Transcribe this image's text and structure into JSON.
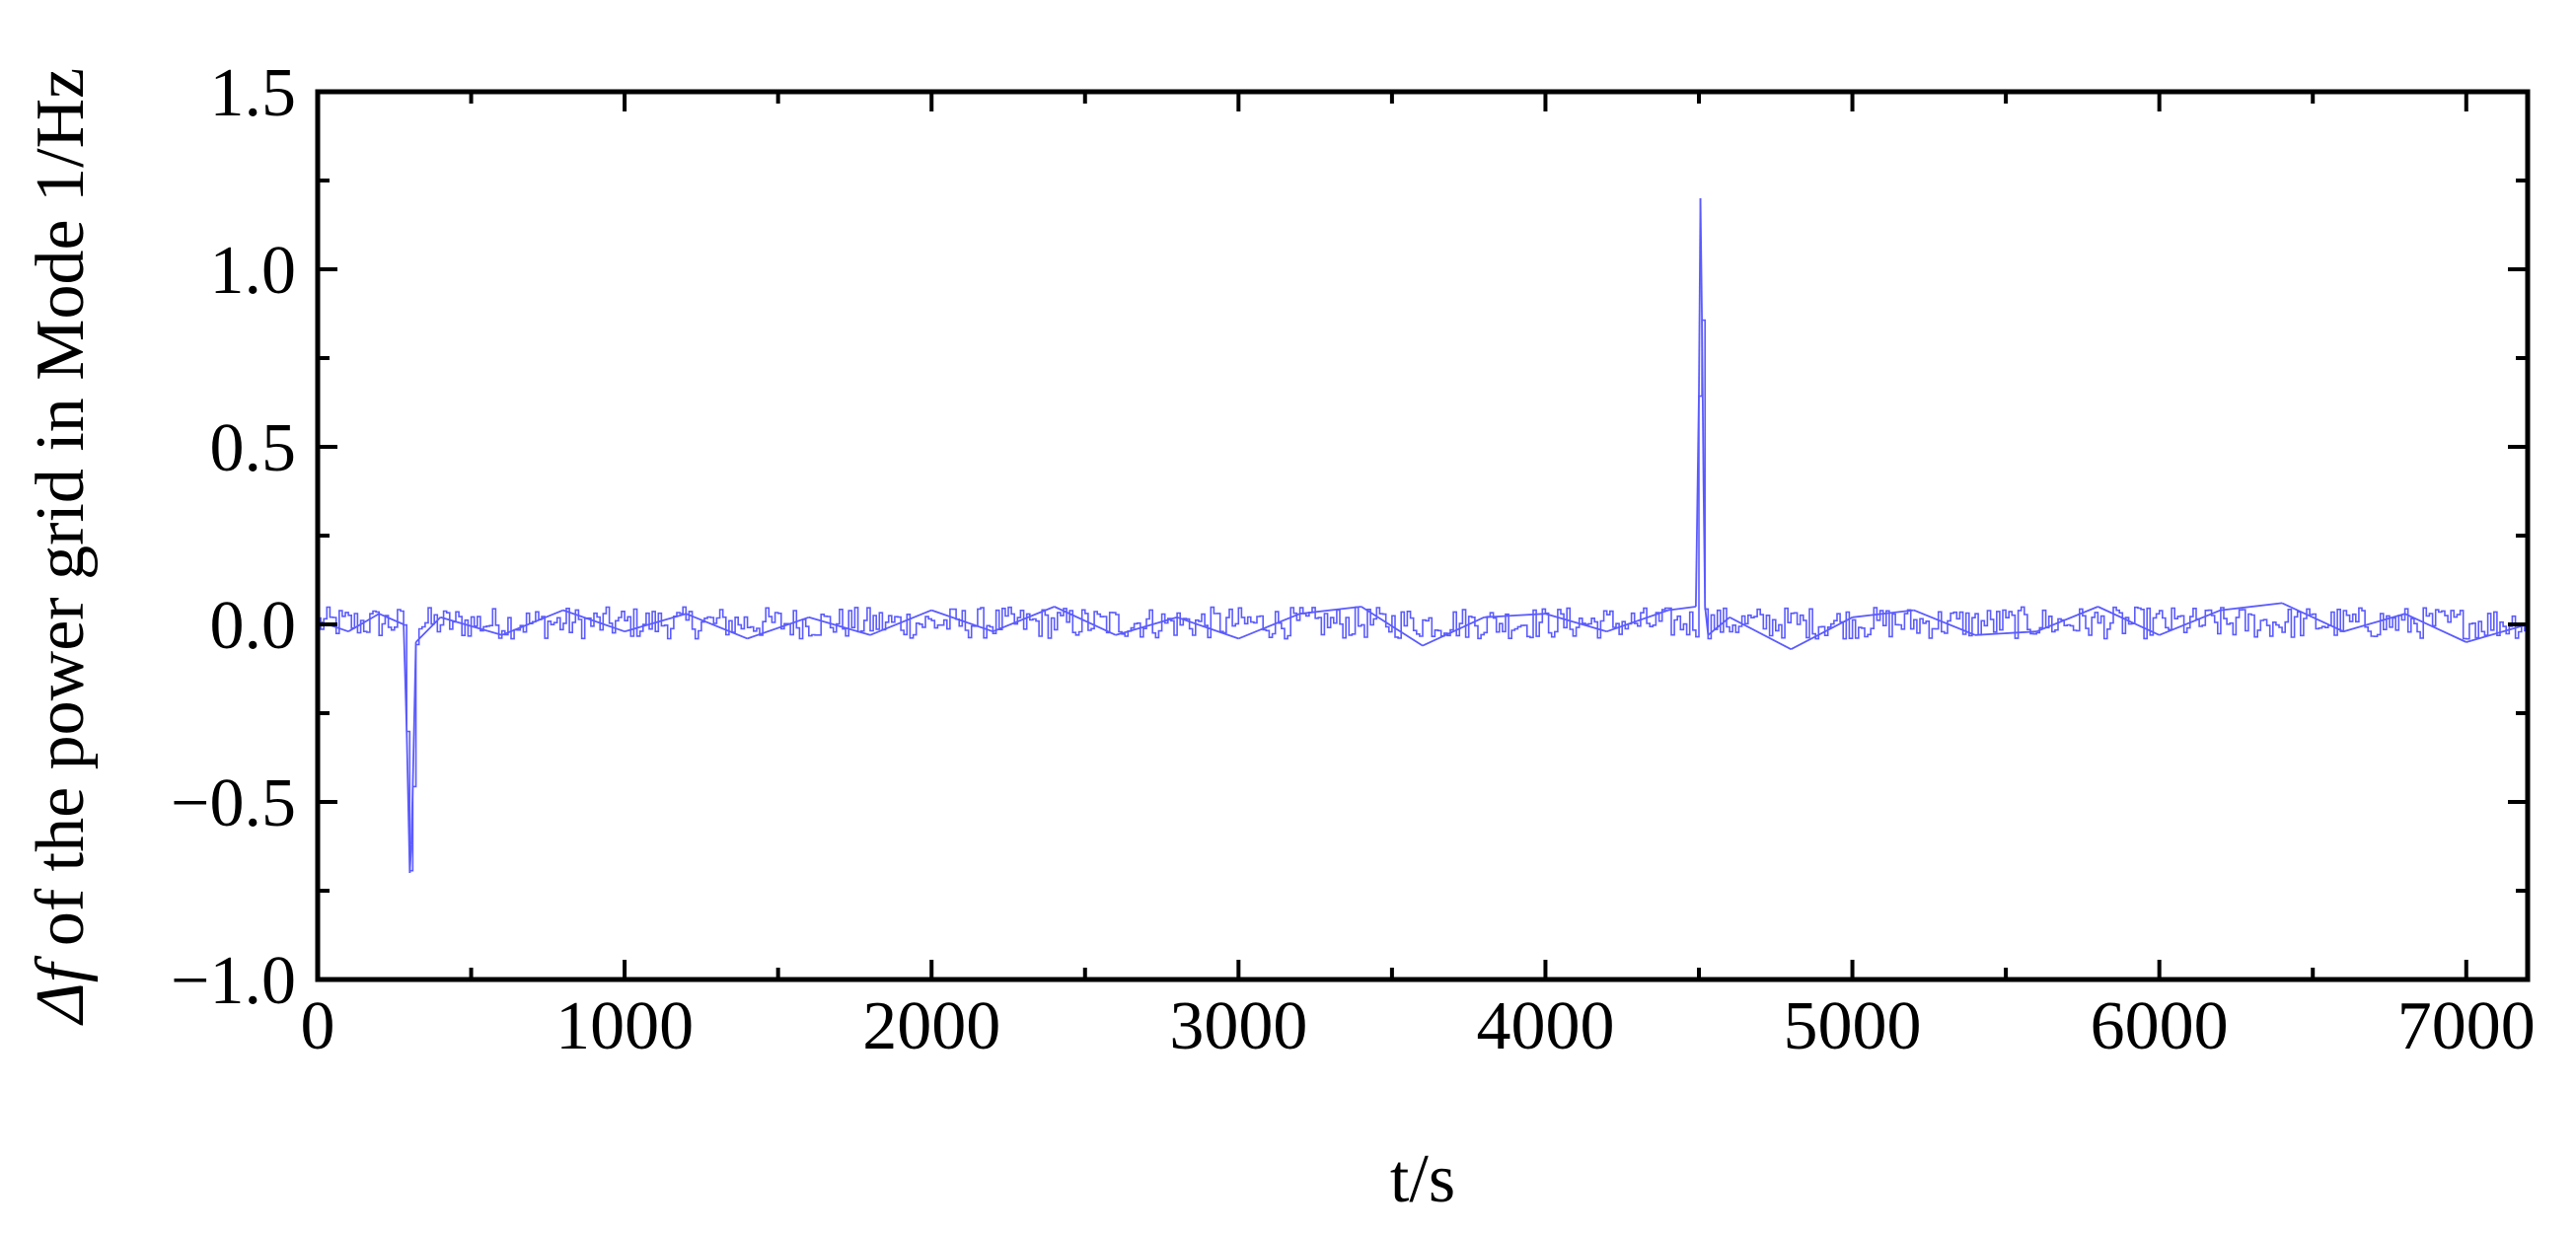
{
  "chart_data": {
    "type": "line",
    "title": "",
    "xlabel": "t/s",
    "ylabel": {
      "symbol": "Δf",
      "rest": " of the power grid in Mode 1/Hz"
    },
    "xlim": [
      0,
      7200
    ],
    "ylim": [
      -1.0,
      1.5
    ],
    "xticks": [
      0,
      1000,
      2000,
      3000,
      4000,
      5000,
      6000,
      7000
    ],
    "xtick_labels": [
      "0",
      "1000",
      "2000",
      "3000",
      "4000",
      "5000",
      "6000",
      "7000"
    ],
    "yticks": [
      -1.0,
      -0.5,
      0.0,
      0.5,
      1.0,
      1.5
    ],
    "ytick_labels": [
      "−1.0",
      "−0.5",
      "0.0",
      "0.5",
      "1.0",
      "1.5"
    ],
    "grid": false,
    "series": [
      {
        "color": "#5b5bff",
        "x": [
          0,
          100,
          200,
          280,
          290,
          300,
          305,
          310,
          320,
          400,
          600,
          800,
          1000,
          1200,
          1400,
          1600,
          1800,
          2000,
          2200,
          2400,
          2600,
          2800,
          3000,
          3200,
          3400,
          3600,
          3800,
          4000,
          4200,
          4400,
          4490,
          4500,
          4505,
          4510,
          4515,
          4520,
          4530,
          4600,
          4800,
          5000,
          5200,
          5400,
          5600,
          5800,
          6000,
          6200,
          6400,
          6600,
          6800,
          7000,
          7200
        ],
        "y": [
          0.01,
          -0.02,
          0.03,
          0.0,
          -0.3,
          -0.7,
          -0.62,
          -0.45,
          -0.05,
          0.02,
          -0.03,
          0.04,
          -0.02,
          0.03,
          -0.04,
          0.02,
          -0.03,
          0.04,
          -0.02,
          0.05,
          -0.03,
          0.02,
          -0.04,
          0.03,
          0.05,
          -0.06,
          0.02,
          0.03,
          -0.02,
          0.04,
          0.05,
          0.65,
          1.2,
          0.85,
          0.4,
          0.05,
          -0.03,
          0.02,
          -0.07,
          0.02,
          0.04,
          -0.03,
          -0.02,
          0.05,
          -0.03,
          0.04,
          0.06,
          -0.02,
          0.03,
          -0.05,
          0.0
        ]
      }
    ]
  }
}
